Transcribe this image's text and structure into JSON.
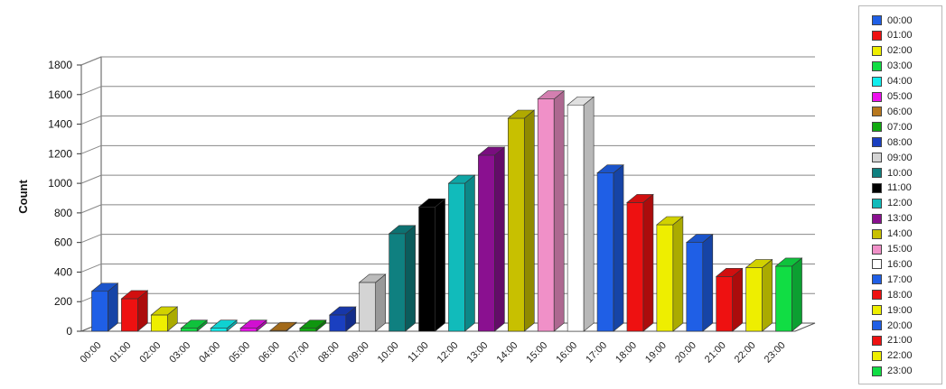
{
  "chart_data": {
    "type": "bar",
    "ylabel": "Count",
    "xlabel": "",
    "ylim": [
      0,
      1800
    ],
    "yticks": [
      0,
      200,
      400,
      600,
      800,
      1000,
      1200,
      1400,
      1600,
      1800
    ],
    "categories": [
      "00:00",
      "01:00",
      "02:00",
      "03:00",
      "04:00",
      "05:00",
      "06:00",
      "07:00",
      "08:00",
      "09:00",
      "10:00",
      "11:00",
      "12:00",
      "13:00",
      "14:00",
      "15:00",
      "16:00",
      "17:00",
      "18:00",
      "19:00",
      "20:00",
      "21:00",
      "22:00",
      "23:00"
    ],
    "values": [
      270,
      220,
      110,
      20,
      20,
      20,
      5,
      20,
      110,
      330,
      660,
      840,
      1000,
      1190,
      1440,
      1570,
      1530,
      1070,
      870,
      720,
      600,
      370,
      430,
      440
    ],
    "colors": [
      "#1f5fe6",
      "#ee1111",
      "#eeee00",
      "#11dd44",
      "#11eeee",
      "#ee11ee",
      "#b8781e",
      "#11aa11",
      "#1a3fc0",
      "#d4d4d4",
      "#0f8080",
      "#000000",
      "#11bbbb",
      "#8a1090",
      "#c8c000",
      "#f090c8",
      "#ffffff",
      "#1f5fe6",
      "#ee1111",
      "#eeee00",
      "#1f5fe6",
      "#ee1111",
      "#eeee00",
      "#11dd44"
    ],
    "grid": true,
    "legend_position": "right"
  },
  "legend": {
    "items": [
      "00:00",
      "01:00",
      "02:00",
      "03:00",
      "04:00",
      "05:00",
      "06:00",
      "07:00",
      "08:00",
      "09:00",
      "10:00",
      "11:00",
      "12:00",
      "13:00",
      "14:00",
      "15:00",
      "16:00",
      "17:00",
      "18:00",
      "19:00",
      "20:00",
      "21:00",
      "22:00",
      "23:00"
    ]
  }
}
